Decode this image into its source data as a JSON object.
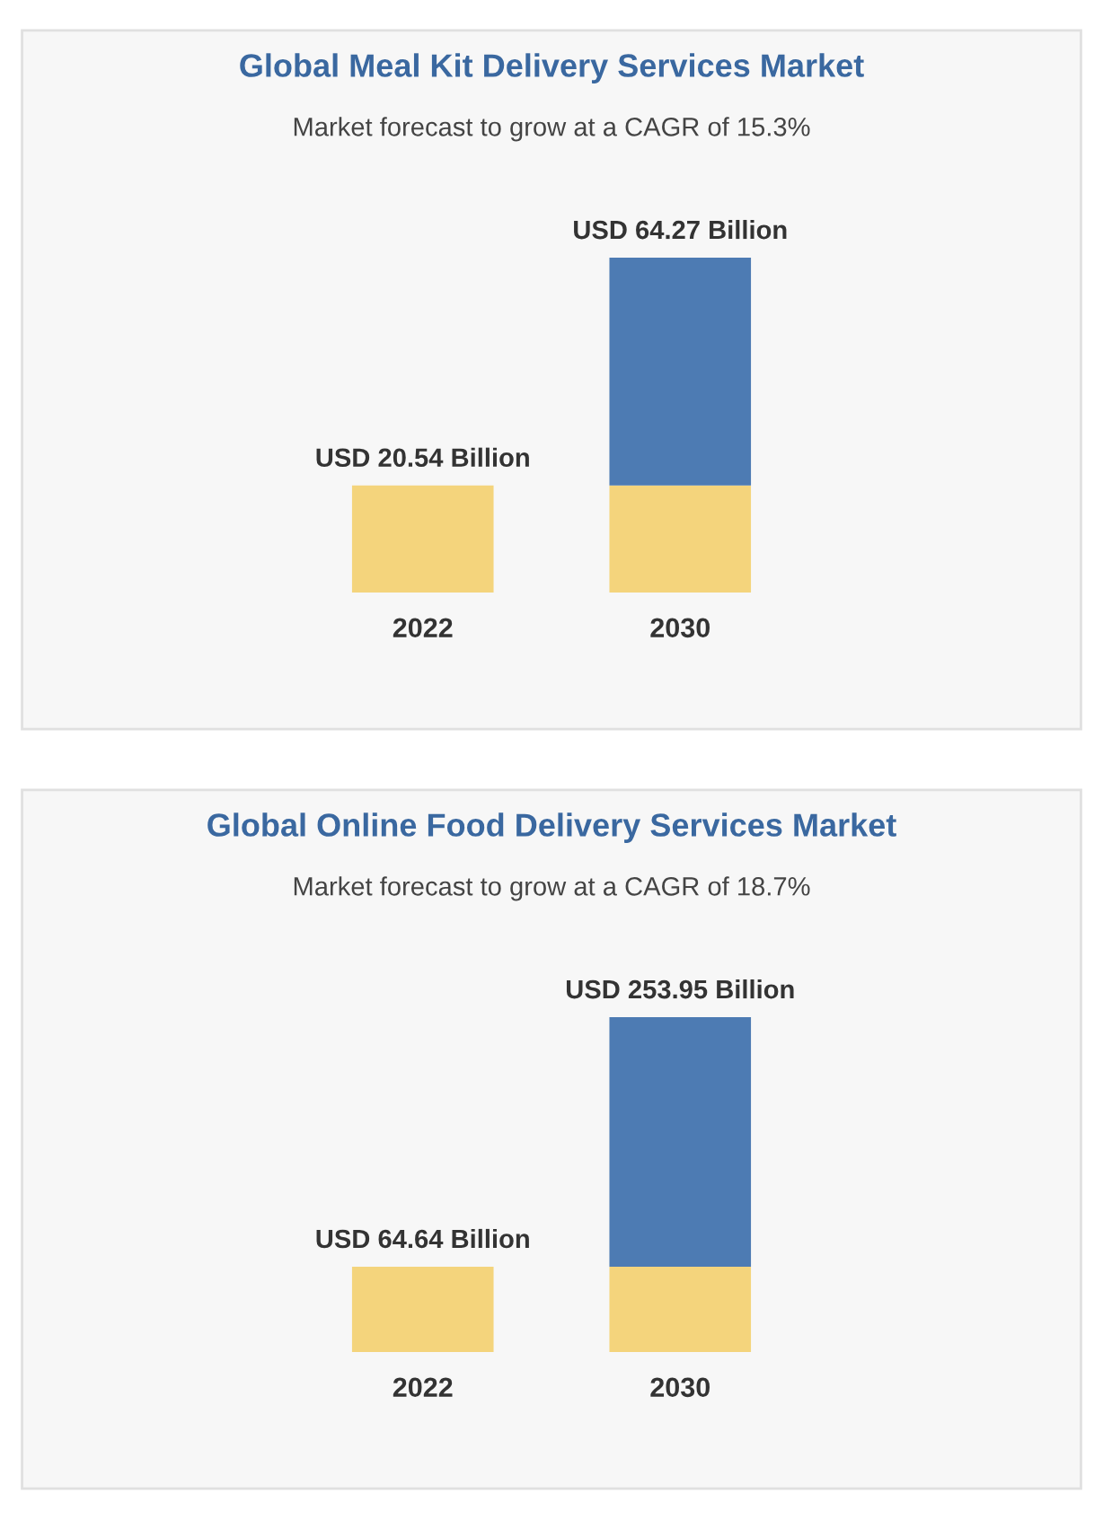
{
  "chart_data": [
    {
      "type": "bar",
      "title": "Global Meal Kit Delivery Services Market",
      "subtitle": "Market forecast to grow at a CAGR of 15.3%",
      "categories": [
        "2022",
        "2030"
      ],
      "tick_labels": "x",
      "stacked": true,
      "series": [
        {
          "color": "#f4d47c",
          "values": [
            20.54,
            20.54
          ],
          "value_labels": [
            "USD 20.54 Billion",
            null
          ]
        },
        {
          "color": "#4d7bb3",
          "values": [
            null,
            43.73
          ]
        }
      ],
      "totals": [
        null,
        "USD 64.27 Billion"
      ]
    },
    {
      "type": "bar",
      "title": "Global Online Food Delivery Services Market",
      "subtitle": "Market forecast to grow at a CAGR of 18.7%",
      "categories": [
        "2022",
        "2030"
      ],
      "tick_labels": "x",
      "stacked": true,
      "series": [
        {
          "color": "#f4d47c",
          "values": [
            64.64,
            64.64
          ],
          "value_labels": [
            "USD 64.64 Billion",
            null
          ]
        },
        {
          "color": "#4d7bb3",
          "values": [
            null,
            189.31
          ]
        }
      ],
      "totals": [
        null,
        "USD 253.95 Billion"
      ]
    }
  ]
}
